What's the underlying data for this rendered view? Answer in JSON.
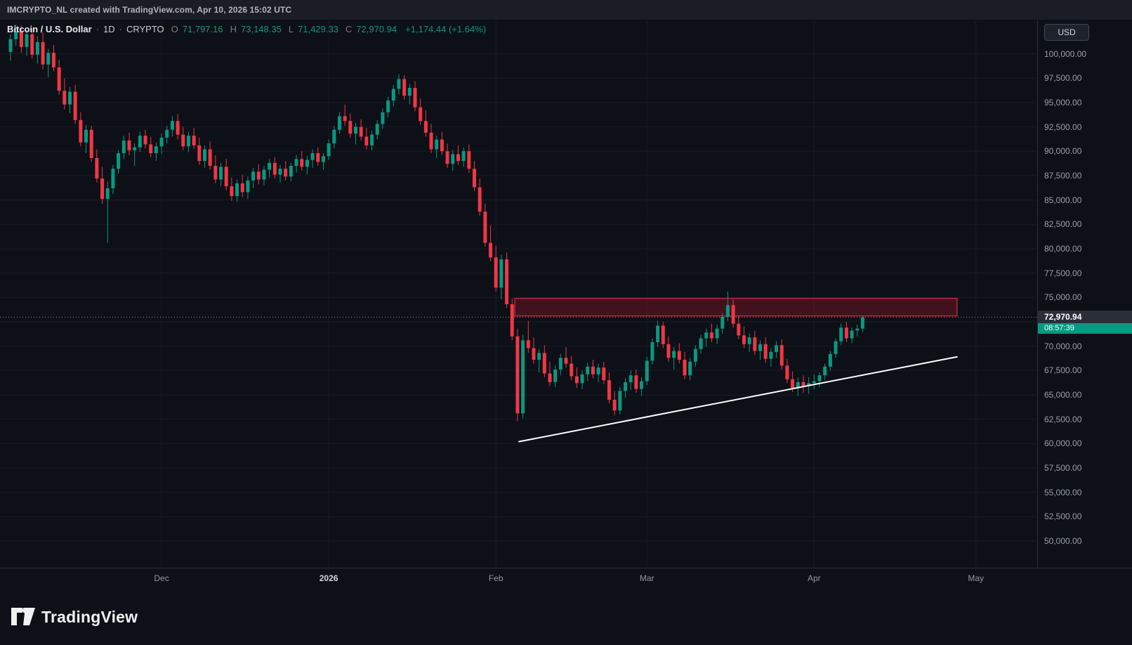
{
  "attribution": "IMCRYPTO_NL created with TradingView.com, Apr 10, 2026 15:02 UTC",
  "legend": {
    "symbol": "Bitcoin / U.S. Dollar",
    "separator": "·",
    "interval": "1D",
    "exchange": "CRYPTO",
    "open_label": "O",
    "open": "71,797.16",
    "high_label": "H",
    "high": "73,148.35",
    "low_label": "L",
    "low": "71,429.33",
    "close_label": "C",
    "close": "72,970.94",
    "change": "+1,174.44 (+1.64%)"
  },
  "price_scale": {
    "currency_button": "USD",
    "last_price_label": "72,970.94",
    "countdown": "08:57:39"
  },
  "footer": {
    "brand": "TradingView"
  },
  "chart_data": {
    "type": "candlestick",
    "title": "Bitcoin / U.S. Dollar · 1D · CRYPTO",
    "ylim": [
      47260,
      103500
    ],
    "price_min": 47260,
    "price_max": 103500,
    "axis_labels": [
      "100,000.00",
      "97,500.00",
      "95,000.00",
      "92,500.00",
      "90,000.00",
      "87,500.00",
      "85,000.00",
      "82,500.00",
      "80,000.00",
      "77,500.00",
      "75,000.00",
      "72,500.00",
      "70,000.00",
      "67,500.00",
      "65,000.00",
      "62,500.00",
      "60,000.00",
      "57,500.00",
      "55,000.00",
      "52,500.00",
      "50,000.00"
    ],
    "month_ticks": [
      {
        "label": "Dec",
        "index": 28,
        "emphasis": false
      },
      {
        "label": "2026",
        "index": 59,
        "emphasis": true
      },
      {
        "label": "Feb",
        "index": 90,
        "emphasis": false
      },
      {
        "label": "Mar",
        "index": 118,
        "emphasis": false
      },
      {
        "label": "Apr",
        "index": 149,
        "emphasis": false
      },
      {
        "label": "May",
        "index": 179,
        "emphasis": false
      }
    ],
    "first_candle_date": "2025-11-03",
    "last_candle_date": "2026-04-10",
    "last_price": 72970.94,
    "last_ohlc": {
      "open": 71797.16,
      "high": 73148.35,
      "low": 71429.33,
      "close": 72970.94
    },
    "change_abs": 1174.44,
    "change_pct": 1.64,
    "candles": [
      [
        100200,
        102000,
        99300,
        101500
      ],
      [
        101500,
        103000,
        100800,
        102300
      ],
      [
        102300,
        102900,
        100100,
        100700
      ],
      [
        100700,
        102400,
        99800,
        102000
      ],
      [
        102000,
        102600,
        99500,
        99900
      ],
      [
        99900,
        101800,
        99000,
        101200
      ],
      [
        101200,
        102200,
        98400,
        98900
      ],
      [
        98900,
        100500,
        97600,
        100100
      ],
      [
        100100,
        100900,
        98200,
        98600
      ],
      [
        98600,
        99400,
        95800,
        96200
      ],
      [
        96200,
        97500,
        94300,
        94800
      ],
      [
        94800,
        96600,
        93900,
        96100
      ],
      [
        96100,
        96800,
        92800,
        93200
      ],
      [
        93200,
        94000,
        90500,
        90900
      ],
      [
        90900,
        92700,
        89800,
        92200
      ],
      [
        92200,
        92600,
        88900,
        89300
      ],
      [
        89300,
        90200,
        86800,
        87200
      ],
      [
        87200,
        88400,
        84600,
        85100
      ],
      [
        85100,
        86900,
        80600,
        86200
      ],
      [
        86200,
        88600,
        85600,
        88200
      ],
      [
        88200,
        90100,
        87700,
        89800
      ],
      [
        89800,
        91600,
        89200,
        91100
      ],
      [
        91100,
        91900,
        89600,
        90100
      ],
      [
        90100,
        90800,
        88500,
        90400
      ],
      [
        90400,
        92000,
        89900,
        91600
      ],
      [
        91600,
        92200,
        90300,
        90700
      ],
      [
        90700,
        91500,
        89400,
        89800
      ],
      [
        89800,
        90900,
        89000,
        90500
      ],
      [
        90500,
        91800,
        89700,
        91400
      ],
      [
        91400,
        92600,
        90800,
        92200
      ],
      [
        92200,
        93600,
        91500,
        93100
      ],
      [
        93100,
        93800,
        91200,
        91700
      ],
      [
        91700,
        92500,
        90100,
        90500
      ],
      [
        90500,
        92000,
        89900,
        91600
      ],
      [
        91600,
        92400,
        90200,
        90600
      ],
      [
        90600,
        91400,
        88600,
        89000
      ],
      [
        89000,
        90600,
        88300,
        90200
      ],
      [
        90200,
        91000,
        88100,
        88500
      ],
      [
        88500,
        89600,
        86700,
        87100
      ],
      [
        87100,
        88800,
        86400,
        88400
      ],
      [
        88400,
        89200,
        86000,
        86400
      ],
      [
        86400,
        87300,
        84900,
        85400
      ],
      [
        85400,
        87100,
        84800,
        86700
      ],
      [
        86700,
        87600,
        85300,
        85800
      ],
      [
        85800,
        87400,
        85100,
        87000
      ],
      [
        87000,
        88300,
        86200,
        87900
      ],
      [
        87900,
        88700,
        86600,
        87100
      ],
      [
        87100,
        88500,
        86500,
        88100
      ],
      [
        88100,
        89200,
        87300,
        88800
      ],
      [
        88800,
        89400,
        87200,
        87600
      ],
      [
        87600,
        88600,
        86800,
        88200
      ],
      [
        88200,
        89000,
        87000,
        87400
      ],
      [
        87400,
        88800,
        86900,
        88500
      ],
      [
        88500,
        89600,
        87800,
        89200
      ],
      [
        89200,
        90000,
        88000,
        88400
      ],
      [
        88400,
        89500,
        87600,
        89100
      ],
      [
        89100,
        90200,
        88300,
        89800
      ],
      [
        89800,
        90400,
        88500,
        88900
      ],
      [
        88900,
        89800,
        88100,
        89500
      ],
      [
        89500,
        91200,
        89100,
        90800
      ],
      [
        90800,
        92600,
        90300,
        92200
      ],
      [
        92200,
        94000,
        91800,
        93600
      ],
      [
        93600,
        94800,
        92600,
        93100
      ],
      [
        93100,
        93900,
        91400,
        91800
      ],
      [
        91800,
        92900,
        90700,
        92500
      ],
      [
        92500,
        93300,
        91100,
        91500
      ],
      [
        91500,
        92400,
        90200,
        90600
      ],
      [
        90600,
        92100,
        90100,
        91700
      ],
      [
        91700,
        93200,
        91200,
        92800
      ],
      [
        92800,
        94400,
        92300,
        94000
      ],
      [
        94000,
        95600,
        93500,
        95200
      ],
      [
        95200,
        96800,
        94600,
        96400
      ],
      [
        96400,
        97900,
        95800,
        97400
      ],
      [
        97400,
        97800,
        95300,
        95700
      ],
      [
        95700,
        96900,
        94800,
        96500
      ],
      [
        96500,
        97200,
        94100,
        94500
      ],
      [
        94500,
        95400,
        92700,
        93100
      ],
      [
        93100,
        94200,
        91500,
        91900
      ],
      [
        91900,
        92800,
        89800,
        90200
      ],
      [
        90200,
        91600,
        89300,
        91200
      ],
      [
        91200,
        92000,
        89600,
        90000
      ],
      [
        90000,
        90800,
        88300,
        88700
      ],
      [
        88700,
        90100,
        88000,
        89700
      ],
      [
        89700,
        90600,
        88600,
        89000
      ],
      [
        89000,
        90400,
        88400,
        90000
      ],
      [
        90000,
        90700,
        87800,
        88200
      ],
      [
        88200,
        89000,
        85900,
        86300
      ],
      [
        86300,
        87200,
        83400,
        83800
      ],
      [
        83800,
        84600,
        80200,
        80600
      ],
      [
        80600,
        82400,
        78700,
        79100
      ],
      [
        79100,
        80300,
        75600,
        76000
      ],
      [
        76000,
        79400,
        74800,
        78900
      ],
      [
        78900,
        79600,
        73900,
        74300
      ],
      [
        74300,
        74900,
        70600,
        71000
      ],
      [
        71000,
        71800,
        62300,
        63100
      ],
      [
        63100,
        71200,
        62600,
        70600
      ],
      [
        70600,
        72600,
        69300,
        69800
      ],
      [
        69800,
        70900,
        68200,
        68600
      ],
      [
        68600,
        69700,
        67300,
        69300
      ],
      [
        69300,
        70100,
        66800,
        67200
      ],
      [
        67200,
        68400,
        65900,
        66300
      ],
      [
        66300,
        68000,
        65800,
        67600
      ],
      [
        67600,
        69200,
        67000,
        68800
      ],
      [
        68800,
        69900,
        67800,
        68200
      ],
      [
        68200,
        69000,
        66500,
        66900
      ],
      [
        66900,
        67800,
        65700,
        66200
      ],
      [
        66200,
        67500,
        65600,
        67100
      ],
      [
        67100,
        68300,
        66400,
        67900
      ],
      [
        67900,
        68600,
        66700,
        67100
      ],
      [
        67100,
        68200,
        66300,
        67800
      ],
      [
        67800,
        68400,
        66100,
        66500
      ],
      [
        66500,
        67300,
        64100,
        64500
      ],
      [
        64500,
        65400,
        62900,
        63400
      ],
      [
        63400,
        65800,
        63000,
        65400
      ],
      [
        65400,
        66700,
        64700,
        66300
      ],
      [
        66300,
        67500,
        65500,
        67000
      ],
      [
        67000,
        67600,
        65200,
        65600
      ],
      [
        65600,
        66800,
        64900,
        66400
      ],
      [
        66400,
        68900,
        66000,
        68500
      ],
      [
        68500,
        70800,
        68100,
        70400
      ],
      [
        70400,
        72600,
        69900,
        72100
      ],
      [
        72100,
        72500,
        69800,
        70200
      ],
      [
        70200,
        71000,
        68400,
        68800
      ],
      [
        68800,
        69900,
        67600,
        69500
      ],
      [
        69500,
        70300,
        68200,
        68600
      ],
      [
        68600,
        69400,
        66600,
        67000
      ],
      [
        67000,
        68800,
        66500,
        68400
      ],
      [
        68400,
        70100,
        67900,
        69700
      ],
      [
        69700,
        71200,
        69200,
        70800
      ],
      [
        70800,
        71800,
        69900,
        71400
      ],
      [
        71400,
        72300,
        70400,
        70800
      ],
      [
        70800,
        72200,
        70200,
        71800
      ],
      [
        71800,
        73400,
        71300,
        73000
      ],
      [
        73000,
        75600,
        72600,
        74200
      ],
      [
        74200,
        74800,
        71900,
        72300
      ],
      [
        72300,
        73100,
        70700,
        71100
      ],
      [
        71100,
        72000,
        69800,
        70200
      ],
      [
        70200,
        71300,
        69400,
        70900
      ],
      [
        70900,
        71600,
        69100,
        69500
      ],
      [
        69500,
        70600,
        68600,
        70200
      ],
      [
        70200,
        70900,
        68300,
        68700
      ],
      [
        68700,
        69800,
        67900,
        69400
      ],
      [
        69400,
        70500,
        68800,
        70100
      ],
      [
        70100,
        70700,
        67600,
        68000
      ],
      [
        68000,
        68700,
        66200,
        66600
      ],
      [
        66600,
        67400,
        65300,
        65700
      ],
      [
        65700,
        66800,
        64900,
        66300
      ],
      [
        66300,
        67000,
        65200,
        65900
      ],
      [
        65900,
        66800,
        65100,
        66200
      ],
      [
        66200,
        67100,
        65600,
        66400
      ],
      [
        66400,
        67300,
        65800,
        67000
      ],
      [
        67000,
        68200,
        66500,
        67900
      ],
      [
        67900,
        69500,
        67500,
        69200
      ],
      [
        69200,
        70800,
        68800,
        70500
      ],
      [
        70500,
        72300,
        70100,
        71900
      ],
      [
        71900,
        72500,
        70400,
        70800
      ],
      [
        70800,
        71900,
        70300,
        71600
      ],
      [
        71600,
        72200,
        71000,
        71800
      ],
      [
        71797.16,
        73148.35,
        71429.33,
        72970.94
      ]
    ],
    "supply_zone": {
      "top": 74900,
      "bottom": 73100,
      "start_index": 93.5,
      "end_index": 175.5
    },
    "trendline": {
      "start_index": 94.3,
      "start_price": 60200,
      "end_index": 175.5,
      "end_price": 68900
    },
    "colors": {
      "up": "#089981",
      "down": "#f23645",
      "grid": "#161b26",
      "zone_fill": "rgba(178,24,43,0.32)",
      "zone_border": "#b22b38",
      "trendline": "#ffffff",
      "last_price_line": "#9598a1",
      "background": "#0d1017"
    },
    "legend_position": "top-left",
    "grid": true
  }
}
